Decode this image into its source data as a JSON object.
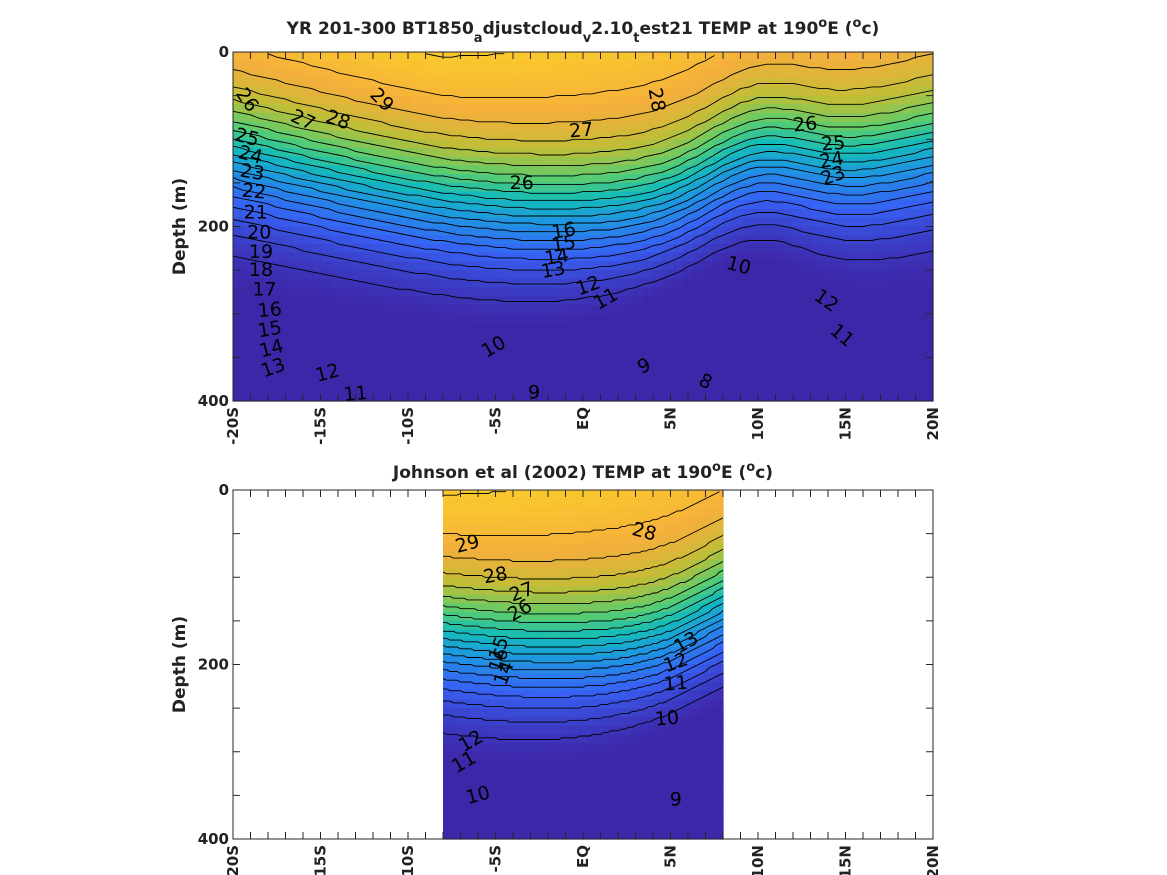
{
  "chart_data": [
    {
      "type": "heatmap",
      "title_parts": {
        "a": "YR 201-300 BT1850",
        "a_sub": "a",
        "b": "djustcloud",
        "b_sub": "v",
        "c": "2.10",
        "c_sub": "t",
        "d": "est21 TEMP at 190",
        "d_sup": "o",
        "e": "E (",
        "e_sup": "o",
        "f": "c)"
      },
      "ylabel": "Depth (m)",
      "x_tick_labels": [
        "-20S",
        "-15S",
        "-10S",
        "-5S",
        "EQ",
        "5N",
        "10N",
        "15N",
        "20N"
      ],
      "x_ticks": [
        -20,
        -15,
        -10,
        -5,
        0,
        5,
        10,
        15,
        20
      ],
      "xlim": [
        -20,
        20
      ],
      "y_tick_labels": [
        "0",
        "200",
        "400"
      ],
      "y_ticks": [
        0,
        200,
        400
      ],
      "ylim": [
        0,
        400
      ],
      "y_reversed": true,
      "data_xlim": [
        -20,
        20
      ],
      "contour_labels": [
        {
          "text": "26",
          "x": -19.2,
          "y": 55,
          "rot": 55
        },
        {
          "text": "27",
          "x": -16.0,
          "y": 78,
          "rot": 25
        },
        {
          "text": "28",
          "x": -14.0,
          "y": 78,
          "rot": 20
        },
        {
          "text": "29",
          "x": -11.5,
          "y": 55,
          "rot": 45
        },
        {
          "text": "28",
          "x": 4.2,
          "y": 55,
          "rot": 80
        },
        {
          "text": "27",
          "x": -0.1,
          "y": 90,
          "rot": -5
        },
        {
          "text": "26",
          "x": 12.7,
          "y": 83,
          "rot": -5
        },
        {
          "text": "25",
          "x": -19.2,
          "y": 98,
          "rot": 15
        },
        {
          "text": "24",
          "x": -19.0,
          "y": 118,
          "rot": 15
        },
        {
          "text": "23",
          "x": -18.9,
          "y": 138,
          "rot": 10
        },
        {
          "text": "22",
          "x": -18.8,
          "y": 160,
          "rot": 5
        },
        {
          "text": "21",
          "x": -18.7,
          "y": 184,
          "rot": 0
        },
        {
          "text": "20",
          "x": -18.5,
          "y": 207,
          "rot": 0
        },
        {
          "text": "19",
          "x": -18.4,
          "y": 229,
          "rot": 0
        },
        {
          "text": "18",
          "x": -18.4,
          "y": 250,
          "rot": 0
        },
        {
          "text": "17",
          "x": -18.2,
          "y": 272,
          "rot": 0
        },
        {
          "text": "16",
          "x": -17.9,
          "y": 296,
          "rot": -5
        },
        {
          "text": "15",
          "x": -17.9,
          "y": 318,
          "rot": -10
        },
        {
          "text": "14",
          "x": -17.8,
          "y": 340,
          "rot": -15
        },
        {
          "text": "13",
          "x": -17.7,
          "y": 362,
          "rot": -20
        },
        {
          "text": "12",
          "x": -14.6,
          "y": 368,
          "rot": -15
        },
        {
          "text": "11",
          "x": -13.0,
          "y": 392,
          "rot": -5
        },
        {
          "text": "26",
          "x": -3.5,
          "y": 150,
          "rot": 0
        },
        {
          "text": "25",
          "x": 14.3,
          "y": 105,
          "rot": -5
        },
        {
          "text": "24",
          "x": 14.2,
          "y": 124,
          "rot": -10
        },
        {
          "text": "23",
          "x": 14.3,
          "y": 142,
          "rot": -20
        },
        {
          "text": "13",
          "x": -1.7,
          "y": 250,
          "rot": -10
        },
        {
          "text": "14",
          "x": -1.5,
          "y": 235,
          "rot": -10
        },
        {
          "text": "15",
          "x": -1.1,
          "y": 220,
          "rot": -10
        },
        {
          "text": "16",
          "x": -1.1,
          "y": 205,
          "rot": -10
        },
        {
          "text": "12",
          "x": 0.3,
          "y": 268,
          "rot": -20
        },
        {
          "text": "11",
          "x": 1.3,
          "y": 283,
          "rot": -30
        },
        {
          "text": "10",
          "x": -5.1,
          "y": 338,
          "rot": -30
        },
        {
          "text": "10",
          "x": 8.9,
          "y": 245,
          "rot": 15
        },
        {
          "text": "12",
          "x": 13.9,
          "y": 285,
          "rot": 35
        },
        {
          "text": "11",
          "x": 14.8,
          "y": 325,
          "rot": 40
        },
        {
          "text": "9",
          "x": -2.8,
          "y": 390,
          "rot": 0
        },
        {
          "text": "9",
          "x": 3.5,
          "y": 360,
          "rot": -25
        },
        {
          "text": "8",
          "x": 7.0,
          "y": 378,
          "rot": 25
        }
      ]
    },
    {
      "type": "heatmap",
      "title_parts": {
        "a": "Johnson et al (2002) TEMP at 190",
        "a_sup": "o",
        "b": "E (",
        "b_sup": "o",
        "c": "c)"
      },
      "ylabel": "Depth (m)",
      "x_tick_labels": [
        "-20S",
        "-15S",
        "-10S",
        "-5S",
        "EQ",
        "5N",
        "10N",
        "15N",
        "20N"
      ],
      "x_ticks": [
        -20,
        -15,
        -10,
        -5,
        0,
        5,
        10,
        15,
        20
      ],
      "xlim": [
        -20,
        20
      ],
      "y_tick_labels": [
        "0",
        "200",
        "400"
      ],
      "y_ticks": [
        0,
        200,
        400
      ],
      "ylim": [
        0,
        400
      ],
      "y_reversed": true,
      "data_xlim": [
        -8,
        8
      ],
      "contour_labels": [
        {
          "text": "29",
          "x": -6.6,
          "y": 62,
          "rot": -15
        },
        {
          "text": "28",
          "x": -5.0,
          "y": 98,
          "rot": -10
        },
        {
          "text": "28",
          "x": 3.5,
          "y": 48,
          "rot": 15
        },
        {
          "text": "27",
          "x": -3.5,
          "y": 117,
          "rot": -20
        },
        {
          "text": "26",
          "x": -3.6,
          "y": 138,
          "rot": -30
        },
        {
          "text": "16",
          "x": -4.8,
          "y": 195,
          "rot": -70
        },
        {
          "text": "15",
          "x": -4.8,
          "y": 182,
          "rot": -70
        },
        {
          "text": "14",
          "x": -4.5,
          "y": 210,
          "rot": -70
        },
        {
          "text": "13",
          "x": 5.9,
          "y": 175,
          "rot": -30
        },
        {
          "text": "12",
          "x": 5.3,
          "y": 198,
          "rot": -20
        },
        {
          "text": "11",
          "x": 5.3,
          "y": 222,
          "rot": -5
        },
        {
          "text": "10",
          "x": 4.8,
          "y": 262,
          "rot": -5
        },
        {
          "text": "12",
          "x": -6.4,
          "y": 288,
          "rot": -30
        },
        {
          "text": "11",
          "x": -6.8,
          "y": 312,
          "rot": -30
        },
        {
          "text": "10",
          "x": -6.0,
          "y": 350,
          "rot": -15
        },
        {
          "text": "9",
          "x": 5.3,
          "y": 355,
          "rot": 0
        }
      ]
    }
  ]
}
